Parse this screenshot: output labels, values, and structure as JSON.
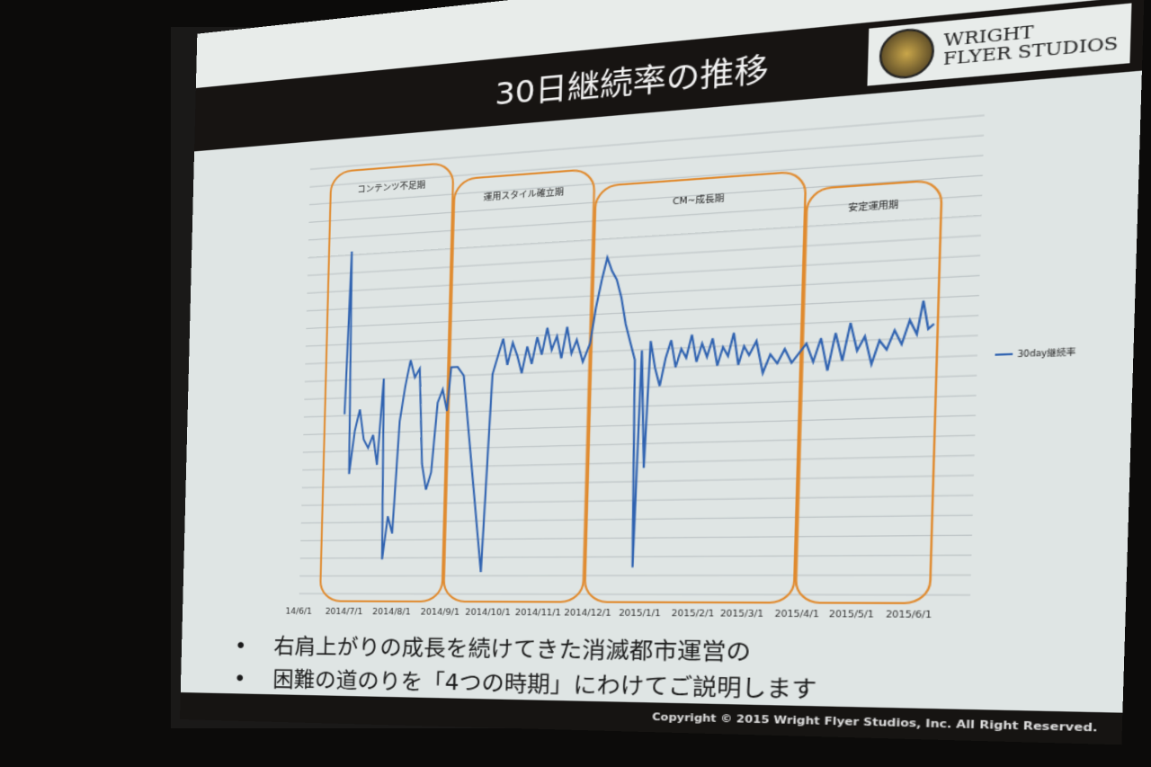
{
  "slide": {
    "title": "30日継続率の推移",
    "logo_line1": "WRIGHT",
    "logo_line2": "FLYER STUDIOS",
    "bullets": [
      "右肩上がりの成長を続けてきた消滅都市運営の",
      "困難の道のりを「4つの時期」にわけてご説明します"
    ],
    "copyright": "Copyright © 2015 Wright Flyer Studios, Inc. All Right Reserved."
  },
  "chart_data": {
    "type": "line",
    "title": "",
    "xlabel": "",
    "ylabel": "",
    "y_unit_note_hidden": null,
    "x_ticks": [
      "14/6/1",
      "2014/7/1",
      "2014/8/1",
      "2014/9/1",
      "2014/10/1",
      "2014/11/1",
      "2014/12/1",
      "2015/1/1",
      "2015/2/1",
      "2015/3/1",
      "2015/4/1",
      "2015/5/1",
      "2015/6/1"
    ],
    "grid": true,
    "legend": {
      "placement": "right",
      "entries": [
        "30day継続率"
      ]
    },
    "line_color": "#2f62b0",
    "period_color": "#e08a2e",
    "periods": [
      {
        "label": "コンテンツ不足期",
        "start": "2014-06-15",
        "end": "2014-09-02"
      },
      {
        "label": "運用スタイル確立期",
        "start": "2014-09-03",
        "end": "2014-11-28"
      },
      {
        "label": "CM~成長期",
        "start": "2014-11-29",
        "end": "2015-03-30"
      },
      {
        "label": "安定運用期",
        "start": "2015-03-31",
        "end": "2015-06-12"
      }
    ],
    "series": [
      {
        "name": "30day継続率",
        "points": [
          [
            "2014-06-28",
            42
          ],
          [
            "2014-06-30",
            80
          ],
          [
            "2014-07-02",
            28
          ],
          [
            "2014-07-05",
            38
          ],
          [
            "2014-07-08",
            43
          ],
          [
            "2014-07-11",
            36
          ],
          [
            "2014-07-14",
            34
          ],
          [
            "2014-07-17",
            37
          ],
          [
            "2014-07-20",
            30
          ],
          [
            "2014-07-23",
            50
          ],
          [
            "2014-07-25",
            8
          ],
          [
            "2014-07-28",
            18
          ],
          [
            "2014-07-31",
            14
          ],
          [
            "2014-08-03",
            40
          ],
          [
            "2014-08-06",
            48
          ],
          [
            "2014-08-09",
            54
          ],
          [
            "2014-08-12",
            50
          ],
          [
            "2014-08-15",
            52
          ],
          [
            "2014-08-18",
            30
          ],
          [
            "2014-08-21",
            24
          ],
          [
            "2014-08-24",
            28
          ],
          [
            "2014-08-27",
            44
          ],
          [
            "2014-08-30",
            47
          ],
          [
            "2014-09-02",
            42
          ],
          [
            "2014-09-04",
            52
          ],
          [
            "2014-09-08",
            52
          ],
          [
            "2014-09-12",
            50
          ],
          [
            "2014-09-26",
            5
          ],
          [
            "2014-09-30",
            50
          ],
          [
            "2014-10-03",
            54
          ],
          [
            "2014-10-06",
            58
          ],
          [
            "2014-10-09",
            52
          ],
          [
            "2014-10-12",
            57
          ],
          [
            "2014-10-15",
            54
          ],
          [
            "2014-10-18",
            50
          ],
          [
            "2014-10-21",
            56
          ],
          [
            "2014-10-24",
            52
          ],
          [
            "2014-10-27",
            58
          ],
          [
            "2014-10-30",
            54
          ],
          [
            "2014-11-02",
            60
          ],
          [
            "2014-11-05",
            55
          ],
          [
            "2014-11-08",
            58
          ],
          [
            "2014-11-11",
            53
          ],
          [
            "2014-11-14",
            60
          ],
          [
            "2014-11-17",
            54
          ],
          [
            "2014-11-20",
            57
          ],
          [
            "2014-11-24",
            52
          ],
          [
            "2014-11-28",
            56
          ],
          [
            "2014-12-01",
            64
          ],
          [
            "2014-12-04",
            70
          ],
          [
            "2014-12-07",
            75
          ],
          [
            "2014-12-10",
            72
          ],
          [
            "2014-12-13",
            70
          ],
          [
            "2014-12-16",
            66
          ],
          [
            "2014-12-19",
            60
          ],
          [
            "2014-12-22",
            56
          ],
          [
            "2014-12-25",
            52
          ],
          [
            "2014-12-27",
            6
          ],
          [
            "2014-12-29",
            54
          ],
          [
            "2015-01-01",
            28
          ],
          [
            "2015-01-03",
            56
          ],
          [
            "2015-01-06",
            50
          ],
          [
            "2015-01-09",
            46
          ],
          [
            "2015-01-12",
            52
          ],
          [
            "2015-01-15",
            56
          ],
          [
            "2015-01-18",
            50
          ],
          [
            "2015-01-21",
            54
          ],
          [
            "2015-01-24",
            52
          ],
          [
            "2015-01-27",
            57
          ],
          [
            "2015-01-30",
            51
          ],
          [
            "2015-02-02",
            55
          ],
          [
            "2015-02-05",
            52
          ],
          [
            "2015-02-08",
            56
          ],
          [
            "2015-02-11",
            50
          ],
          [
            "2015-02-14",
            54
          ],
          [
            "2015-02-17",
            52
          ],
          [
            "2015-02-20",
            57
          ],
          [
            "2015-02-23",
            50
          ],
          [
            "2015-02-26",
            54
          ],
          [
            "2015-03-01",
            52
          ],
          [
            "2015-03-05",
            55
          ],
          [
            "2015-03-09",
            48
          ],
          [
            "2015-03-13",
            52
          ],
          [
            "2015-03-17",
            50
          ],
          [
            "2015-03-21",
            53
          ],
          [
            "2015-03-25",
            50
          ],
          [
            "2015-03-29",
            52
          ],
          [
            "2015-04-02",
            54
          ],
          [
            "2015-04-06",
            50
          ],
          [
            "2015-04-10",
            55
          ],
          [
            "2015-04-14",
            48
          ],
          [
            "2015-04-18",
            56
          ],
          [
            "2015-04-22",
            50
          ],
          [
            "2015-04-26",
            58
          ],
          [
            "2015-04-30",
            52
          ],
          [
            "2015-05-04",
            55
          ],
          [
            "2015-05-08",
            49
          ],
          [
            "2015-05-12",
            54
          ],
          [
            "2015-05-16",
            52
          ],
          [
            "2015-05-20",
            56
          ],
          [
            "2015-05-24",
            53
          ],
          [
            "2015-05-28",
            58
          ],
          [
            "2015-06-01",
            55
          ],
          [
            "2015-06-04",
            62
          ],
          [
            "2015-06-07",
            56
          ],
          [
            "2015-06-10",
            57
          ]
        ]
      }
    ]
  }
}
